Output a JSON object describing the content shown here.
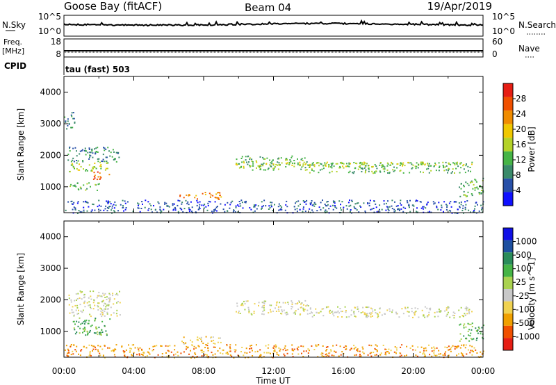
{
  "header": {
    "station": "Goose Bay (fitACF)",
    "beam": "Beam 04",
    "date": "19/Apr/2019"
  },
  "top_panels": {
    "nsky_label": "N.Sky",
    "nsky_ticks": [
      "10^5",
      "10^0"
    ],
    "nsearch_label": "N.Search",
    "nsearch_ticks": [
      "10^5",
      "10^0"
    ],
    "freq_label": "Freq.",
    "freq_unit": "[MHz]",
    "freq_ticks": [
      "18",
      "8"
    ],
    "nave_label": "Nave",
    "nave_ticks": [
      "60",
      "0"
    ],
    "cpid_label": "CPID",
    "cpid_value": "tau (fast) 503"
  },
  "colors": {
    "power": [
      "#1010ff",
      "#2850a8",
      "#3a8a6a",
      "#46b446",
      "#b4d228",
      "#f0c800",
      "#f08c00",
      "#f05000",
      "#e61e14"
    ],
    "velocity": [
      "#e61e14",
      "#f05000",
      "#f0a000",
      "#f0d250",
      "#c8c8c8",
      "#aad250",
      "#46b446",
      "#2a8c5a",
      "#1e50a0",
      "#1010e6"
    ]
  },
  "chart_data": [
    {
      "type": "heatmap",
      "name": "power",
      "x_range_hours": [
        0,
        24
      ],
      "xlim_labels": [
        "00:00",
        "24:00"
      ],
      "ylabel": "Slant Range [km]",
      "ylim": [
        180,
        4500
      ],
      "yticks": [
        "4000",
        "3000",
        "2000",
        "1000"
      ],
      "colorbar_label": "Power [dB]",
      "colorbar_ticks": [
        "28",
        "24",
        "20",
        "16",
        "12",
        "8",
        "4"
      ],
      "regions": [
        {
          "t0": 0.2,
          "t1": 2.6,
          "r0": 1500,
          "r1": 1800,
          "level": 4
        },
        {
          "t0": 0.2,
          "t1": 3.2,
          "r0": 1800,
          "r1": 2300,
          "level": 2
        },
        {
          "t0": 0.3,
          "t1": 2.0,
          "r0": 900,
          "r1": 1150,
          "level": 3
        },
        {
          "t0": 1.6,
          "t1": 2.6,
          "r0": 1250,
          "r1": 1500,
          "level": 7
        },
        {
          "t0": 0.0,
          "t1": 0.6,
          "r0": 2800,
          "r1": 3400,
          "level": 2
        },
        {
          "t0": 6.6,
          "t1": 9.0,
          "r0": 620,
          "r1": 850,
          "level": 6
        },
        {
          "t0": 9.8,
          "t1": 14.0,
          "r0": 1550,
          "r1": 2000,
          "level": 3
        },
        {
          "t0": 14.0,
          "t1": 23.4,
          "r0": 1450,
          "r1": 1800,
          "level": 3
        },
        {
          "t0": 9.8,
          "t1": 23.4,
          "r0": 1650,
          "r1": 1800,
          "level": 4
        },
        {
          "t0": 22.6,
          "t1": 24.0,
          "r0": 700,
          "r1": 1300,
          "level": 3
        },
        {
          "t0": 0.0,
          "t1": 24.0,
          "r0": 180,
          "r1": 600,
          "level": 1
        }
      ]
    },
    {
      "type": "heatmap",
      "name": "velocity",
      "x_range_hours": [
        0,
        24
      ],
      "xlim_labels": [
        "00:00",
        "24:00"
      ],
      "xlabel": "Time UT",
      "xticks": [
        "00:00",
        "04:00",
        "08:00",
        "12:00",
        "16:00",
        "20:00",
        "00:00"
      ],
      "ylabel": "Slant Range [km]",
      "ylim": [
        180,
        4500
      ],
      "yticks": [
        "4000",
        "3000",
        "2000",
        "1000"
      ],
      "colorbar_label": "Velocity [m s^-1]",
      "colorbar_ticks": [
        "1000",
        "500",
        "100",
        "25",
        "-25",
        "-100",
        "-500",
        "-1000"
      ],
      "regions": [
        {
          "t0": 0.2,
          "t1": 3.2,
          "r0": 1500,
          "r1": 2300,
          "level": 4
        },
        {
          "t0": 0.3,
          "t1": 2.6,
          "r0": 900,
          "r1": 1450,
          "level": 6
        },
        {
          "t0": 6.6,
          "t1": 9.0,
          "r0": 620,
          "r1": 850,
          "level": 3
        },
        {
          "t0": 9.8,
          "t1": 14.0,
          "r0": 1550,
          "r1": 2000,
          "level": 4
        },
        {
          "t0": 14.0,
          "t1": 23.4,
          "r0": 1450,
          "r1": 1800,
          "level": 4
        },
        {
          "t0": 22.6,
          "t1": 24.0,
          "r0": 700,
          "r1": 1300,
          "level": 6
        },
        {
          "t0": 0.0,
          "t1": 24.0,
          "r0": 180,
          "r1": 600,
          "level": 2
        }
      ]
    }
  ]
}
